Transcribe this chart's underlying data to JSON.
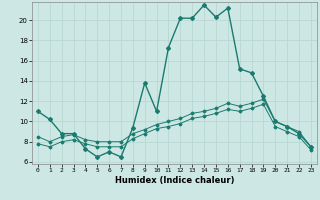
{
  "xlabel": "Humidex (Indice chaleur)",
  "background_color": "#cde8e4",
  "grid_color": "#b8d8d4",
  "line_color": "#1a7a6e",
  "x_ticks": [
    0,
    1,
    2,
    3,
    4,
    5,
    6,
    7,
    8,
    9,
    10,
    11,
    12,
    13,
    14,
    15,
    16,
    17,
    18,
    19,
    20,
    21,
    22,
    23
  ],
  "y_ticks": [
    6,
    8,
    10,
    12,
    14,
    16,
    18,
    20
  ],
  "xlim": [
    -0.5,
    23.5
  ],
  "ylim": [
    5.8,
    21.8
  ],
  "series": [
    {
      "x": [
        0,
        1,
        2,
        3,
        4,
        5,
        6,
        7,
        8,
        9,
        10,
        11,
        12,
        13,
        14,
        15,
        16,
        17,
        18,
        19,
        20,
        21,
        22,
        23
      ],
      "y": [
        11.0,
        10.2,
        8.8,
        8.8,
        7.3,
        6.5,
        7.0,
        6.5,
        9.4,
        13.8,
        11.0,
        17.3,
        20.2,
        20.2,
        21.5,
        20.3,
        21.2,
        15.2,
        14.8,
        12.5,
        10.0,
        9.5,
        8.8,
        7.5
      ],
      "marker": "D",
      "markersize": 2.0,
      "linewidth": 1.0
    },
    {
      "x": [
        0,
        1,
        2,
        3,
        4,
        5,
        6,
        7,
        8,
        9,
        10,
        11,
        12,
        13,
        14,
        15,
        16,
        17,
        18,
        19,
        20,
        21,
        22,
        23
      ],
      "y": [
        8.5,
        8.0,
        8.5,
        8.7,
        8.2,
        8.0,
        8.0,
        8.0,
        8.8,
        9.2,
        9.7,
        10.0,
        10.3,
        10.8,
        11.0,
        11.3,
        11.8,
        11.5,
        11.8,
        12.2,
        10.0,
        9.5,
        9.0,
        7.5
      ],
      "marker": "D",
      "markersize": 1.5,
      "linewidth": 0.7
    },
    {
      "x": [
        0,
        1,
        2,
        3,
        4,
        5,
        6,
        7,
        8,
        9,
        10,
        11,
        12,
        13,
        14,
        15,
        16,
        17,
        18,
        19,
        20,
        21,
        22,
        23
      ],
      "y": [
        7.8,
        7.5,
        8.0,
        8.2,
        7.8,
        7.5,
        7.5,
        7.5,
        8.3,
        8.8,
        9.3,
        9.5,
        9.8,
        10.3,
        10.5,
        10.8,
        11.2,
        11.0,
        11.3,
        11.7,
        9.5,
        9.0,
        8.5,
        7.2
      ],
      "marker": "D",
      "markersize": 1.5,
      "linewidth": 0.7
    }
  ]
}
